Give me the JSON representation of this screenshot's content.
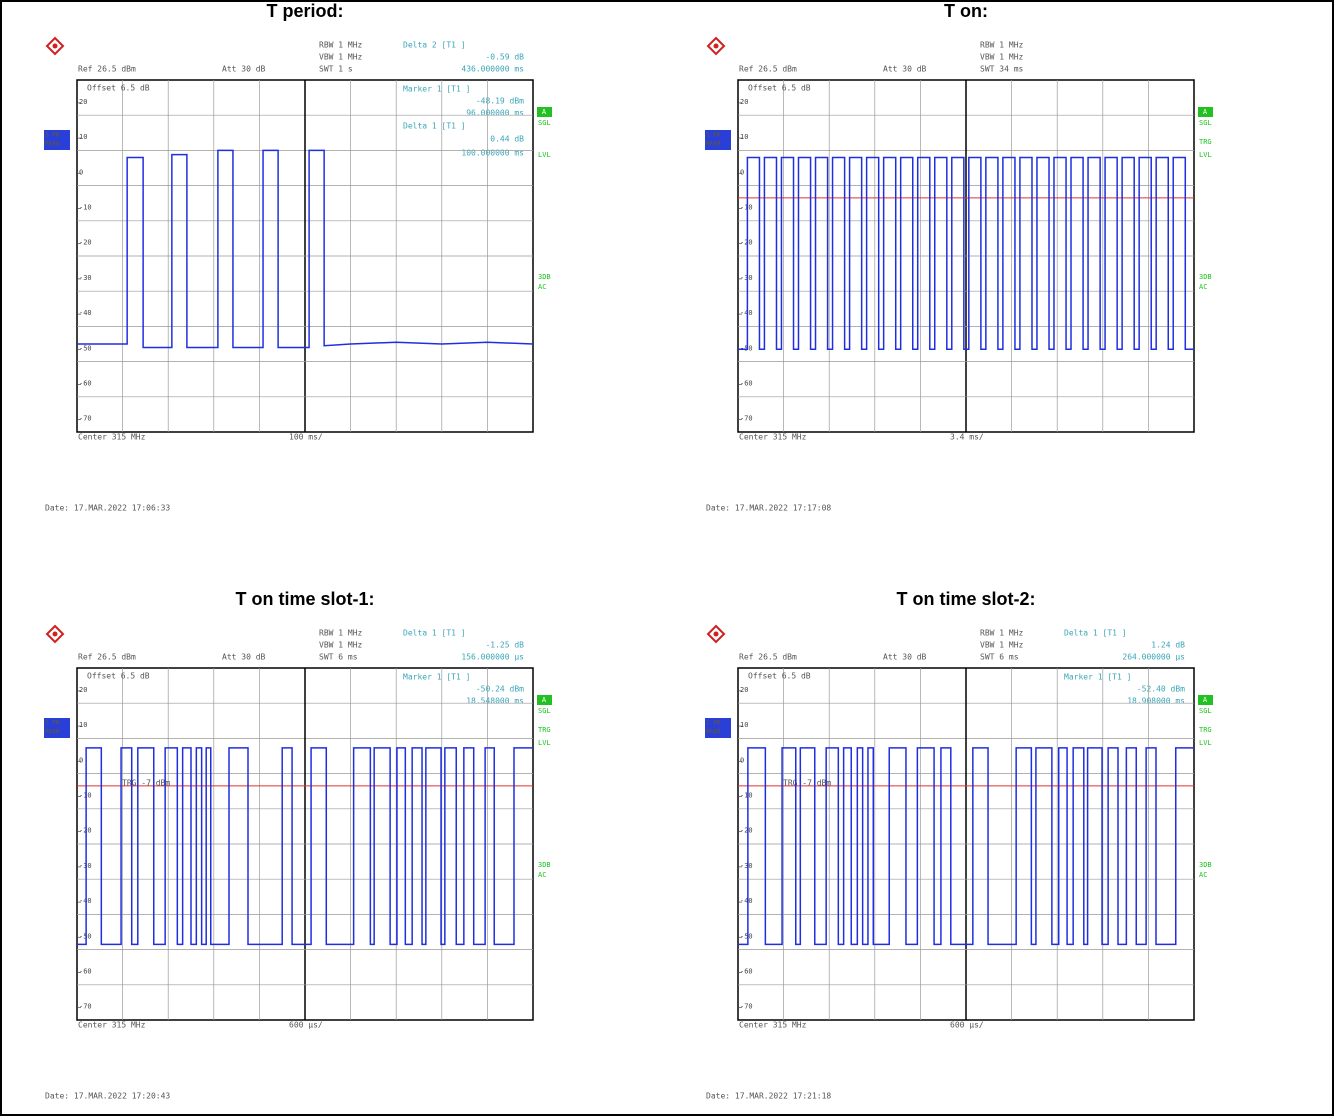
{
  "chart_data": [
    {
      "type": "line",
      "title": "T period:",
      "info": [
        "RBW 1 MHz",
        "VBW 1 MHz",
        "SWT 1 s"
      ],
      "ref": "Ref 26.5 dBm",
      "att": "Att 30 dB",
      "offset": "Offset 6.5 dB",
      "marker_text": [
        "Delta 2 [T1 ]",
        "-0.59 dB",
        "436.000000 ms",
        "Marker 1 [T1 ]",
        "-48.19 dBm",
        "96.000000 ms",
        "Delta 1 [T1 ]",
        "0.44 dB",
        "100.000000 ms"
      ],
      "trace_label": [
        "1 PK",
        "MAXH"
      ],
      "status": [
        "A",
        "SGL",
        "LVL",
        "3DB",
        "AC"
      ],
      "x_center": "Center 315 MHz",
      "x_span": "100 ms/",
      "date": "Date: 17.MAR.2022  17:06:33",
      "xlim": [
        0,
        1000
      ],
      "ylim": [
        -73.5,
        26.5
      ],
      "yticks": [
        20,
        10,
        0,
        -10,
        -20,
        -30,
        -40,
        -50,
        -60,
        -70
      ],
      "color": "#1f2fe0",
      "x": [
        0,
        110,
        110,
        145,
        145,
        208,
        208,
        241,
        241,
        309,
        309,
        342,
        342,
        408,
        408,
        441,
        441,
        509,
        509,
        542,
        542,
        600,
        700,
        800,
        900,
        1000
      ],
      "values": [
        -48.5,
        -48.5,
        4.5,
        4.5,
        -49.5,
        -49.5,
        5.3,
        5.3,
        -49.5,
        -49.5,
        6.5,
        6.5,
        -49.5,
        -49.5,
        6.5,
        6.5,
        -49.5,
        -49.5,
        6.5,
        6.5,
        -49,
        -48.5,
        -48,
        -48.5,
        -48,
        -48.5
      ]
    },
    {
      "type": "line",
      "title": "T on:",
      "info": [
        "RBW 1 MHz",
        "VBW 1 MHz",
        "SWT 34 ms"
      ],
      "ref": "Ref 26.5 dBm",
      "att": "Att 30 dB",
      "offset": "Offset 6.5 dB",
      "marker_text": [],
      "trace_label": [
        "1 PK",
        "MAXH"
      ],
      "status": [
        "A",
        "SGL",
        "TRG",
        "LVL",
        "3DB",
        "AC"
      ],
      "x_center": "Center 315 MHz",
      "x_span": "3.4 ms/",
      "date": "Date: 17.MAR.2022  17:17:08",
      "xlim": [
        0,
        34
      ],
      "ylim": [
        -73.5,
        26.5
      ],
      "yticks": [
        20,
        10,
        0,
        -10,
        -20,
        -30,
        -40,
        -50,
        -60,
        -70
      ],
      "color": "#1f2fe0",
      "trigger_level": -7,
      "x": [
        0,
        0.7,
        0.7,
        1.6,
        1.6,
        1.97,
        1.97,
        2.87,
        2.87,
        3.24,
        3.24,
        4.14,
        4.14,
        4.51,
        4.51,
        5.41,
        5.41,
        5.78,
        5.78,
        6.68,
        6.68,
        7.05,
        7.05,
        7.95,
        7.95,
        8.32,
        8.32,
        9.22,
        9.22,
        9.59,
        9.59,
        10.49,
        10.49,
        10.86,
        10.86,
        11.76,
        11.76,
        12.13,
        12.13,
        13.03,
        13.03,
        13.4,
        13.4,
        14.3,
        14.3,
        14.67,
        14.67,
        15.57,
        15.57,
        15.94,
        15.94,
        16.84,
        16.84,
        17.21,
        17.21,
        18.11,
        18.11,
        18.48,
        18.48,
        19.38,
        19.38,
        19.75,
        19.75,
        20.65,
        20.65,
        21.02,
        21.02,
        21.92,
        21.92,
        22.29,
        22.29,
        23.19,
        23.19,
        23.56,
        23.56,
        24.46,
        24.46,
        24.83,
        24.83,
        25.73,
        25.73,
        26.1,
        26.1,
        27,
        27,
        27.37,
        27.37,
        28.27,
        28.27,
        28.64,
        28.64,
        29.54,
        29.54,
        29.91,
        29.91,
        30.81,
        30.81,
        31.18,
        31.18,
        32.08,
        32.08,
        32.45,
        32.45,
        33.35,
        33.35,
        34
      ],
      "values": [
        -50,
        -50,
        4.5,
        4.5,
        -50,
        -50,
        4.5,
        4.5,
        -50,
        -50,
        4.5,
        4.5,
        -50,
        -50,
        4.5,
        4.5,
        -50,
        -50,
        4.5,
        4.5,
        -50,
        -50,
        4.5,
        4.5,
        -50,
        -50,
        4.5,
        4.5,
        -50,
        -50,
        4.5,
        4.5,
        -50,
        -50,
        4.5,
        4.5,
        -50,
        -50,
        4.5,
        4.5,
        -50,
        -50,
        4.5,
        4.5,
        -50,
        -50,
        4.5,
        4.5,
        -50,
        -50,
        4.5,
        4.5,
        -50,
        -50,
        4.5,
        4.5,
        -50,
        -50,
        4.5,
        4.5,
        -50,
        -50,
        4.5,
        4.5,
        -50,
        -50,
        4.5,
        4.5,
        -50,
        -50,
        4.5,
        4.5,
        -50,
        -50,
        4.5,
        4.5,
        -50,
        -50,
        4.5,
        4.5,
        -50,
        -50,
        4.5,
        4.5,
        -50,
        -50,
        4.5,
        4.5,
        -50,
        -50,
        4.5,
        4.5,
        -50,
        -50,
        4.5,
        4.5,
        -50,
        -50,
        4.5,
        4.5,
        -50,
        -50,
        4.5,
        4.5,
        -50,
        -50
      ]
    },
    {
      "type": "line",
      "title": "T on time slot-1:",
      "info": [
        "RBW 1 MHz",
        "VBW 1 MHz",
        "SWT 6 ms"
      ],
      "ref": "Ref 26.5 dBm",
      "att": "Att 30 dB",
      "offset": "Offset 6.5 dB",
      "marker_text": [
        "Delta 1 [T1 ]",
        "-1.25 dB",
        "156.000000 µs",
        "Marker 1 [T1 ]",
        "-50.24 dBm",
        "18.548000 ms"
      ],
      "trace_label": [
        "1 PK",
        "MAXH"
      ],
      "status": [
        "A",
        "SGL",
        "TRG",
        "LVL",
        "3DB",
        "AC"
      ],
      "x_center": "Center 315 MHz",
      "x_span": "600 µs/",
      "date": "Date: 17.MAR.2022  17:20:43",
      "xlim": [
        0,
        6
      ],
      "ylim": [
        -73.5,
        26.5
      ],
      "yticks": [
        20,
        10,
        0,
        -10,
        -20,
        -30,
        -40,
        -50,
        -60,
        -70
      ],
      "color": "#1f2fe0",
      "trigger_level": -7,
      "trigger_label": "TRG -7 dBm",
      "x": [
        0,
        0.12,
        0.12,
        0.32,
        0.32,
        0.58,
        0.58,
        0.72,
        0.72,
        0.8,
        0.8,
        1.01,
        1.01,
        1.16,
        1.16,
        1.32,
        1.32,
        1.39,
        1.39,
        1.5,
        1.5,
        1.57,
        1.57,
        1.64,
        1.64,
        1.7,
        1.7,
        1.76,
        1.76,
        2,
        2,
        2.25,
        2.25,
        2.7,
        2.7,
        2.83,
        2.83,
        3.08,
        3.08,
        3.28,
        3.28,
        3.64,
        3.64,
        3.86,
        3.86,
        3.91,
        3.91,
        4.12,
        4.12,
        4.21,
        4.21,
        4.32,
        4.32,
        4.41,
        4.41,
        4.54,
        4.54,
        4.59,
        4.59,
        4.79,
        4.79,
        4.84,
        4.84,
        4.99,
        4.99,
        5.09,
        5.09,
        5.22,
        5.22,
        5.37,
        5.37,
        5.49,
        5.49,
        5.75,
        5.75,
        6
      ],
      "values": [
        -52,
        -52,
        3.8,
        3.8,
        -52,
        -52,
        3.8,
        3.8,
        -52,
        -52,
        3.8,
        3.8,
        -52,
        -52,
        3.8,
        3.8,
        -52,
        -52,
        3.8,
        3.8,
        -52,
        -52,
        3.8,
        3.8,
        -52,
        -52,
        3.8,
        3.8,
        -52,
        -52,
        3.8,
        3.8,
        -52,
        -52,
        3.8,
        3.8,
        -52,
        -52,
        3.8,
        3.8,
        -52,
        -52,
        3.8,
        3.8,
        -52,
        -52,
        3.8,
        3.8,
        -52,
        -52,
        3.8,
        3.8,
        -52,
        -52,
        3.8,
        3.8,
        -52,
        -52,
        3.8,
        3.8,
        -52,
        -52,
        3.8,
        3.8,
        -52,
        -52,
        3.8,
        3.8,
        -52,
        -52,
        3.8,
        3.8,
        -52,
        -52,
        3.8,
        3.8
      ]
    },
    {
      "type": "line",
      "title": "T on time slot-2:",
      "info": [
        "RBW 1 MHz",
        "VBW 1 MHz",
        "SWT 6 ms"
      ],
      "ref": "Ref 26.5 dBm",
      "att": "Att 30 dB",
      "offset": "Offset 6.5 dB",
      "marker_text": [
        "Delta 1 [T1 ]",
        "1.24 dB",
        "264.000000 µs",
        "Marker 1 [T1 ]",
        "-52.40 dBm",
        "18.908000 ms"
      ],
      "trace_label": [
        "1 PK",
        "MAXH"
      ],
      "status": [
        "A",
        "SGL",
        "TRG",
        "LVL",
        "3DB",
        "AC"
      ],
      "x_center": "Center 315 MHz",
      "x_span": "600 µs/",
      "date": "Date: 17.MAR.2022  17:21:18",
      "xlim": [
        0,
        6
      ],
      "ylim": [
        -73.5,
        26.5
      ],
      "yticks": [
        20,
        10,
        0,
        -10,
        -20,
        -30,
        -40,
        -50,
        -60,
        -70
      ],
      "color": "#1f2fe0",
      "trigger_level": -7,
      "trigger_label": "TRG -7 dBm",
      "x": [
        0,
        0.13,
        0.13,
        0.36,
        0.36,
        0.58,
        0.58,
        0.76,
        0.76,
        0.82,
        0.82,
        1.01,
        1.01,
        1.16,
        1.16,
        1.32,
        1.32,
        1.39,
        1.39,
        1.49,
        1.49,
        1.57,
        1.57,
        1.64,
        1.64,
        1.71,
        1.71,
        1.78,
        1.78,
        1.99,
        1.99,
        2.21,
        2.21,
        2.36,
        2.36,
        2.58,
        2.58,
        2.67,
        2.67,
        2.8,
        2.8,
        3.09,
        3.09,
        3.29,
        3.29,
        3.66,
        3.66,
        3.86,
        3.86,
        3.92,
        3.92,
        4.13,
        4.13,
        4.22,
        4.22,
        4.33,
        4.33,
        4.41,
        4.41,
        4.55,
        4.55,
        4.6,
        4.6,
        4.79,
        4.79,
        4.87,
        4.87,
        5,
        5,
        5.11,
        5.11,
        5.24,
        5.24,
        5.37,
        5.37,
        5.5,
        5.5,
        5.76,
        5.76,
        6
      ],
      "values": [
        -52,
        -52,
        3.8,
        3.8,
        -52,
        -52,
        3.8,
        3.8,
        -52,
        -52,
        3.8,
        3.8,
        -52,
        -52,
        3.8,
        3.8,
        -52,
        -52,
        3.8,
        3.8,
        -52,
        -52,
        3.8,
        3.8,
        -52,
        -52,
        3.8,
        3.8,
        -52,
        -52,
        3.8,
        3.8,
        -52,
        -52,
        3.8,
        3.8,
        -52,
        -52,
        3.8,
        3.8,
        -52,
        -52,
        3.8,
        3.8,
        -52,
        -52,
        3.8,
        3.8,
        -52,
        -52,
        3.8,
        3.8,
        -52,
        -52,
        3.8,
        3.8,
        -52,
        -52,
        3.8,
        3.8,
        -52,
        -52,
        3.8,
        3.8,
        -52,
        -52,
        3.8,
        3.8,
        -52,
        -52,
        3.8,
        3.8,
        -52,
        -52,
        3.8,
        3.8,
        -52,
        -52,
        3.8,
        3.8
      ]
    }
  ]
}
